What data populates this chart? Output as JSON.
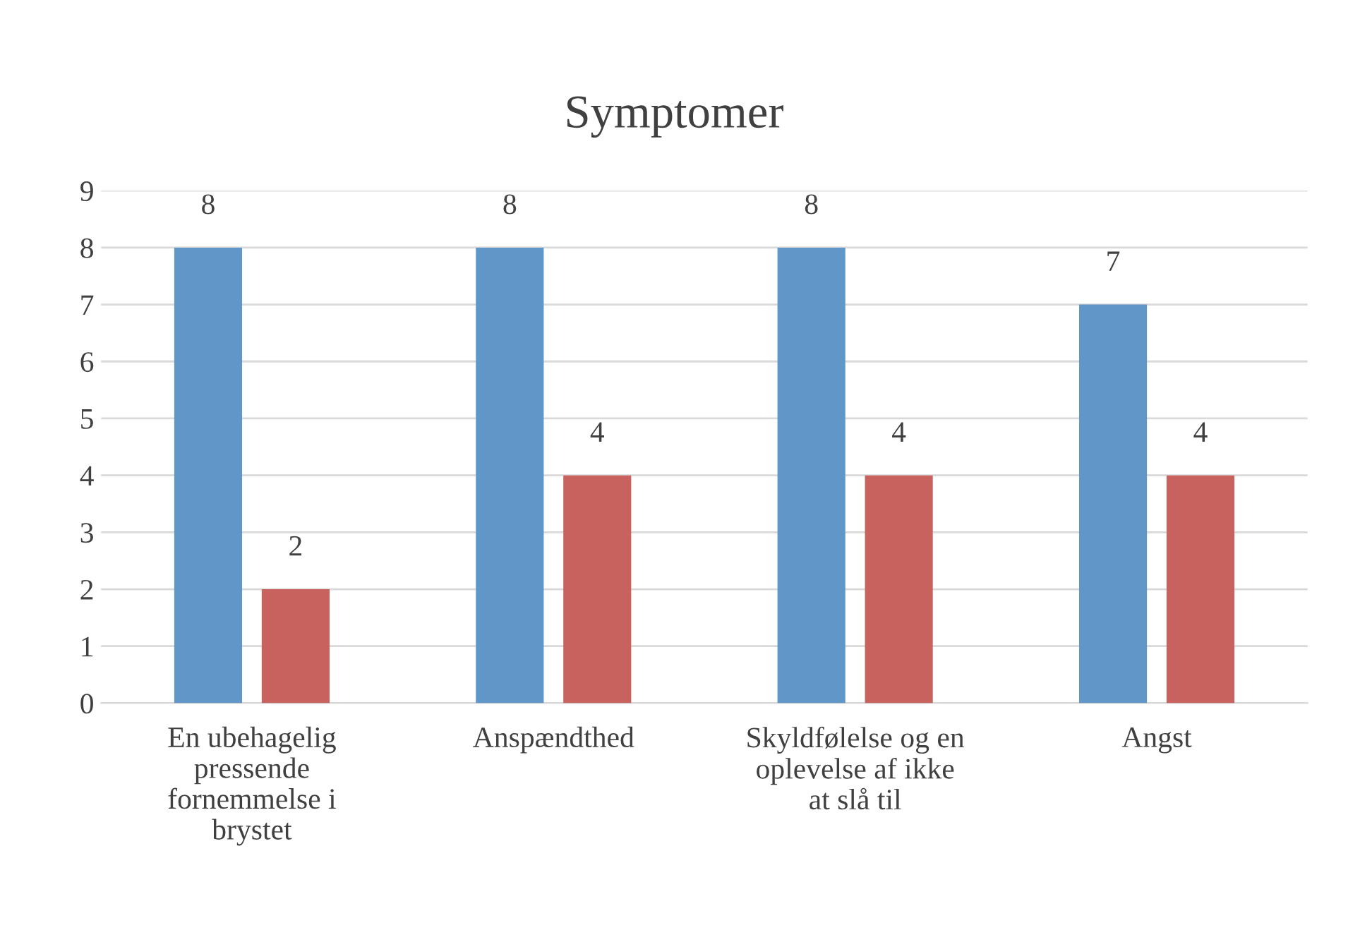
{
  "chart_data": {
    "type": "bar",
    "title": "Symptomer",
    "categories": [
      "En ubehagelig\npressende\nfornemmelse i\nbrystet",
      "Anspændthed",
      "Skyldfølelse og en\noplevelse af ikke\nat slå til",
      "Angst"
    ],
    "series": [
      {
        "color": "#6096c8",
        "values": [
          8,
          8,
          8,
          7
        ]
      },
      {
        "color": "#c8625e",
        "values": [
          2,
          4,
          4,
          4
        ]
      }
    ],
    "ylim": [
      0,
      9
    ],
    "yticks": [
      0,
      1,
      2,
      3,
      4,
      5,
      6,
      7,
      8,
      9
    ],
    "grid": "y",
    "data_labels": true
  }
}
